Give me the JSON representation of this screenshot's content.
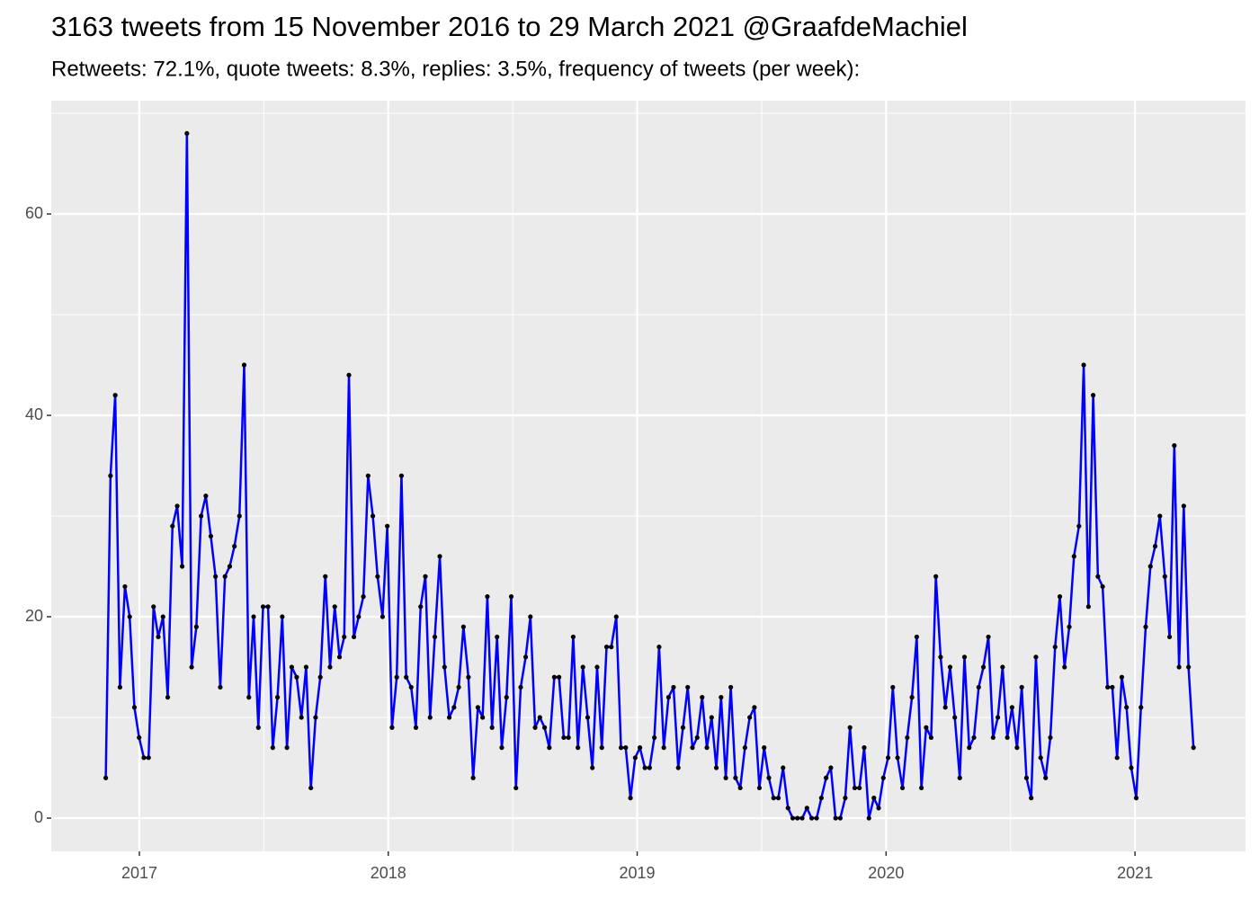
{
  "chart_data": {
    "type": "line",
    "title": "3163 tweets from 15 November 2016 to 29 March 2021 @GraafdeMachiel",
    "subtitle": "Retweets: 72.1%, quote tweets: 8.3%, replies: 3.5%, frequency of tweets (per week):",
    "color": "blue",
    "point_color": "black",
    "grid": true,
    "xlim": [
      2016.646,
      2021.444
    ],
    "xticks": [
      2017,
      2018,
      2019,
      2020,
      2021
    ],
    "ylim": [
      -3.3,
      71.25
    ],
    "yticks": [
      0,
      20,
      40,
      60
    ],
    "x": [
      2016.865,
      2016.884,
      2016.903,
      2016.922,
      2016.942,
      2016.961,
      2016.98,
      2016.999,
      2017.018,
      2017.037,
      2017.057,
      2017.076,
      2017.095,
      2017.114,
      2017.133,
      2017.152,
      2017.172,
      2017.191,
      2017.21,
      2017.229,
      2017.248,
      2017.267,
      2017.287,
      2017.306,
      2017.325,
      2017.344,
      2017.363,
      2017.382,
      2017.402,
      2017.421,
      2017.44,
      2017.459,
      2017.478,
      2017.497,
      2017.517,
      2017.536,
      2017.555,
      2017.574,
      2017.593,
      2017.612,
      2017.632,
      2017.651,
      2017.67,
      2017.689,
      2017.708,
      2017.727,
      2017.747,
      2017.766,
      2017.785,
      2017.804,
      2017.823,
      2017.842,
      2017.862,
      2017.881,
      2017.9,
      2017.919,
      2017.938,
      2017.957,
      2017.977,
      2017.996,
      2018.015,
      2018.034,
      2018.053,
      2018.072,
      2018.092,
      2018.111,
      2018.13,
      2018.149,
      2018.168,
      2018.187,
      2018.207,
      2018.226,
      2018.245,
      2018.264,
      2018.283,
      2018.302,
      2018.322,
      2018.341,
      2018.36,
      2018.379,
      2018.398,
      2018.417,
      2018.437,
      2018.456,
      2018.475,
      2018.494,
      2018.513,
      2018.532,
      2018.552,
      2018.571,
      2018.59,
      2018.609,
      2018.628,
      2018.647,
      2018.667,
      2018.686,
      2018.705,
      2018.724,
      2018.743,
      2018.762,
      2018.782,
      2018.801,
      2018.82,
      2018.839,
      2018.858,
      2018.877,
      2018.896,
      2018.916,
      2018.935,
      2018.954,
      2018.973,
      2018.992,
      2019.011,
      2019.031,
      2019.05,
      2019.069,
      2019.088,
      2019.107,
      2019.126,
      2019.146,
      2019.165,
      2019.184,
      2019.203,
      2019.222,
      2019.241,
      2019.261,
      2019.28,
      2019.299,
      2019.318,
      2019.337,
      2019.356,
      2019.376,
      2019.395,
      2019.414,
      2019.433,
      2019.452,
      2019.471,
      2019.491,
      2019.51,
      2019.529,
      2019.548,
      2019.567,
      2019.586,
      2019.606,
      2019.625,
      2019.644,
      2019.663,
      2019.682,
      2019.701,
      2019.721,
      2019.74,
      2019.759,
      2019.778,
      2019.797,
      2019.816,
      2019.836,
      2019.855,
      2019.874,
      2019.893,
      2019.912,
      2019.931,
      2019.951,
      2019.97,
      2019.989,
      2020.008,
      2020.027,
      2020.046,
      2020.066,
      2020.085,
      2020.104,
      2020.123,
      2020.142,
      2020.161,
      2020.181,
      2020.2,
      2020.219,
      2020.238,
      2020.257,
      2020.276,
      2020.296,
      2020.315,
      2020.334,
      2020.353,
      2020.372,
      2020.391,
      2020.411,
      2020.43,
      2020.449,
      2020.468,
      2020.487,
      2020.506,
      2020.526,
      2020.545,
      2020.564,
      2020.583,
      2020.602,
      2020.621,
      2020.641,
      2020.66,
      2020.679,
      2020.698,
      2020.717,
      2020.736,
      2020.755,
      2020.775,
      2020.794,
      2020.813,
      2020.832,
      2020.851,
      2020.87,
      2020.89,
      2020.909,
      2020.928,
      2020.947,
      2020.966,
      2020.985,
      2021.005,
      2021.024,
      2021.043,
      2021.062,
      2021.081,
      2021.1,
      2021.12,
      2021.139,
      2021.158,
      2021.177,
      2021.196,
      2021.215,
      2021.235
    ],
    "values": [
      4,
      34,
      42,
      13,
      23,
      20,
      11,
      8,
      6,
      6,
      21,
      18,
      20,
      12,
      29,
      31,
      25,
      68,
      15,
      19,
      30,
      32,
      28,
      24,
      13,
      24,
      25,
      27,
      30,
      45,
      12,
      20,
      9,
      21,
      21,
      7,
      12,
      20,
      7,
      15,
      14,
      10,
      15,
      3,
      10,
      14,
      24,
      15,
      21,
      16,
      18,
      44,
      18,
      20,
      22,
      34,
      30,
      24,
      20,
      29,
      9,
      14,
      34,
      14,
      13,
      9,
      21,
      24,
      10,
      18,
      26,
      15,
      10,
      11,
      13,
      19,
      14,
      4,
      11,
      10,
      22,
      9,
      18,
      7,
      12,
      22,
      3,
      13,
      16,
      20,
      9,
      10,
      9,
      7,
      14,
      14,
      8,
      8,
      18,
      7,
      15,
      10,
      5,
      15,
      7,
      17,
      17,
      20,
      7,
      7,
      2,
      6,
      7,
      5,
      5,
      8,
      17,
      7,
      12,
      13,
      5,
      9,
      13,
      7,
      8,
      12,
      7,
      10,
      5,
      12,
      4,
      13,
      4,
      3,
      7,
      10,
      11,
      3,
      7,
      4,
      2,
      2,
      5,
      1,
      0,
      0,
      0,
      1,
      0,
      0,
      2,
      4,
      5,
      0,
      0,
      2,
      9,
      3,
      3,
      7,
      0,
      2,
      1,
      4,
      6,
      13,
      6,
      3,
      8,
      12,
      18,
      3,
      9,
      8,
      24,
      16,
      11,
      15,
      10,
      4,
      16,
      7,
      8,
      13,
      15,
      18,
      8,
      10,
      15,
      8,
      11,
      7,
      13,
      4,
      2,
      16,
      6,
      4,
      8,
      17,
      22,
      15,
      19,
      26,
      29,
      45,
      21,
      42,
      24,
      23,
      13,
      13,
      6,
      14,
      11,
      5,
      2,
      11,
      19,
      25,
      27,
      30,
      24,
      18,
      37,
      15,
      31,
      15,
      7
    ]
  }
}
